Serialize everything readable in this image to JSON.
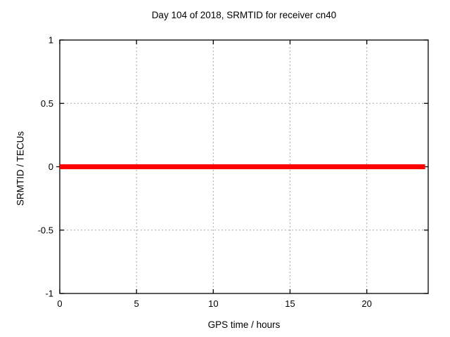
{
  "chart_data": {
    "type": "line",
    "title": "Day 104 of 2018, SRMTID for receiver cn40",
    "xlabel": "GPS time / hours",
    "ylabel": "SRMTID / TECUs",
    "xlim": [
      0,
      24
    ],
    "ylim": [
      -1,
      1
    ],
    "xticks": {
      "values": [
        0,
        5,
        10,
        15,
        20
      ],
      "labels": [
        "0",
        "5",
        "10",
        "15",
        "20"
      ]
    },
    "yticks": {
      "values": [
        1,
        0.5,
        0,
        -0.5,
        -1
      ],
      "labels": [
        "1",
        "0.5",
        "0",
        "-0.5",
        "-1"
      ]
    },
    "grid": true,
    "legend": "none",
    "series": [
      {
        "name": "SRMTID",
        "color": "#ff0000",
        "linewidth": 7,
        "x": [
          0,
          23.8
        ],
        "y": [
          0,
          0
        ]
      }
    ]
  },
  "colors": {
    "background": "#ffffff",
    "border": "#000000",
    "grid": "#a8a8a8",
    "text": "#000000",
    "series": "#ff0000"
  }
}
